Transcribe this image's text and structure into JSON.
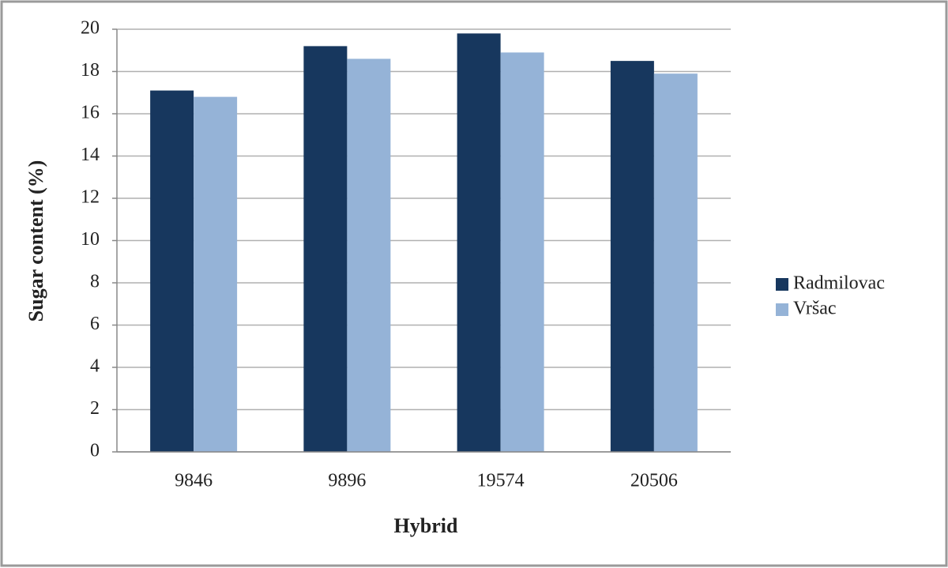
{
  "chart_data": {
    "type": "bar",
    "x_label": "Hybrid",
    "y_label": "Sugar content (%)",
    "categories": [
      "9846",
      "9896",
      "19574",
      "20506"
    ],
    "series": [
      {
        "name": "Radmilovac",
        "color": "#17375e",
        "values": [
          17.1,
          19.2,
          19.8,
          18.5
        ]
      },
      {
        "name": "Vršac",
        "color": "#95b3d7",
        "values": [
          16.8,
          18.6,
          18.9,
          17.9
        ]
      }
    ],
    "ylim": [
      0,
      20
    ],
    "yticks": [
      0,
      2,
      4,
      6,
      8,
      10,
      12,
      14,
      16,
      18,
      20
    ],
    "grid": true,
    "legend": "right"
  }
}
